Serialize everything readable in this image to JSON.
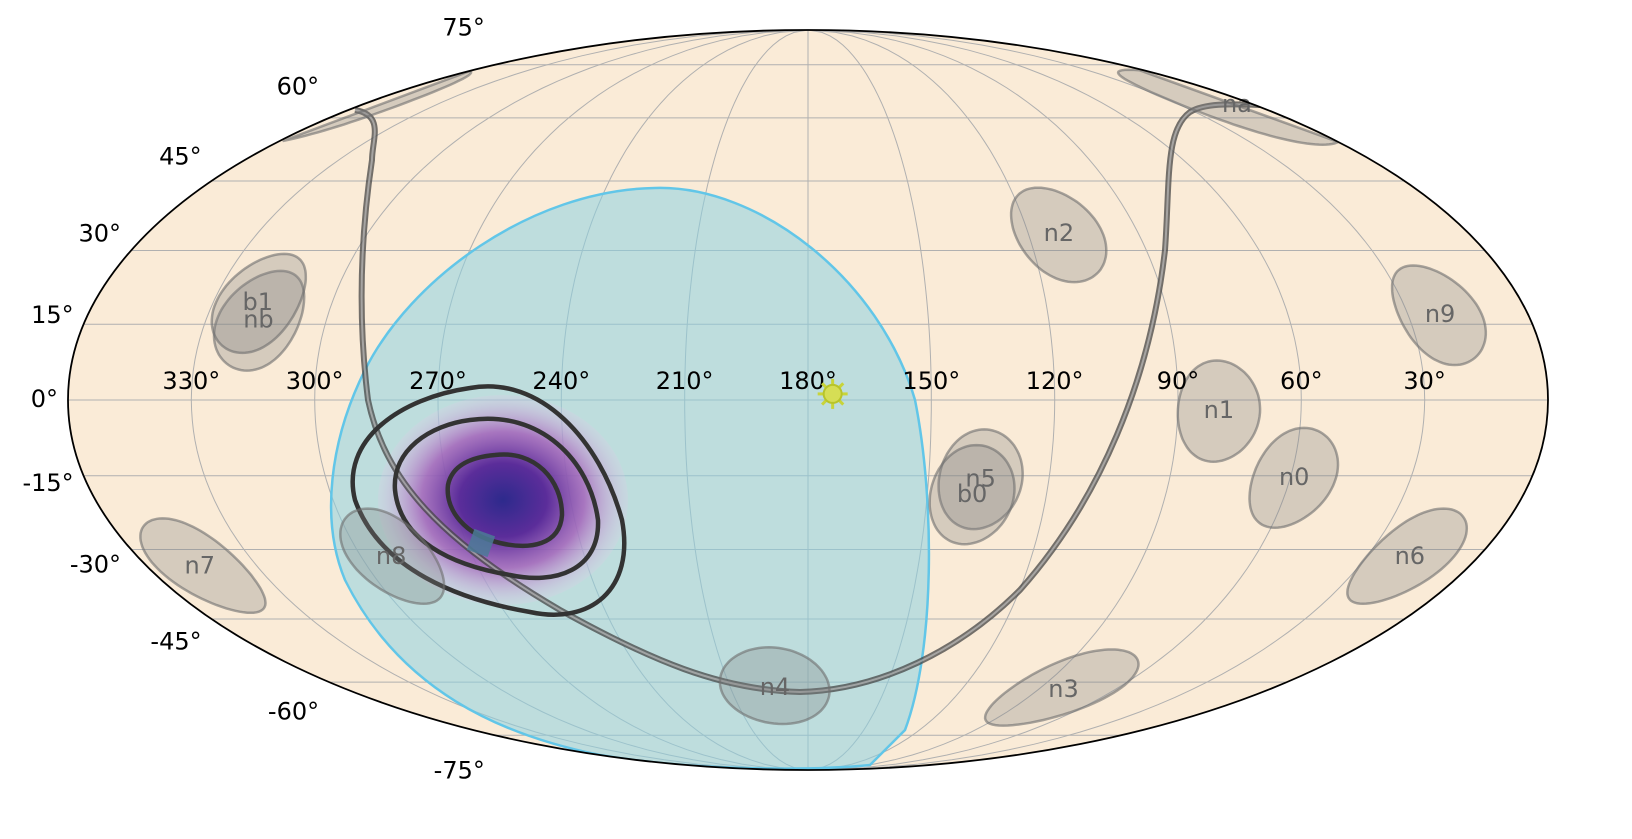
{
  "chart_data": {
    "type": "mollweide",
    "xlim": [
      360,
      0
    ],
    "ylim": [
      -90,
      90
    ],
    "xticks": [
      {
        "value": 330,
        "label": "330°"
      },
      {
        "value": 300,
        "label": "300°"
      },
      {
        "value": 270,
        "label": "270°"
      },
      {
        "value": 240,
        "label": "240°"
      },
      {
        "value": 210,
        "label": "210°"
      },
      {
        "value": 180,
        "label": "180°"
      },
      {
        "value": 150,
        "label": "150°"
      },
      {
        "value": 120,
        "label": "120°"
      },
      {
        "value": 90,
        "label": "90°"
      },
      {
        "value": 60,
        "label": "60°"
      },
      {
        "value": 30,
        "label": "30°"
      }
    ],
    "yticks": [
      {
        "value": -75,
        "label": "-75°"
      },
      {
        "value": -60,
        "label": "-60°"
      },
      {
        "value": -45,
        "label": "-45°"
      },
      {
        "value": -30,
        "label": "-30°"
      },
      {
        "value": -15,
        "label": "-15°"
      },
      {
        "value": 0,
        "label": "0°"
      },
      {
        "value": 15,
        "label": "15°"
      },
      {
        "value": 30,
        "label": "30°"
      },
      {
        "value": 45,
        "label": "45°"
      },
      {
        "value": 60,
        "label": "60°"
      },
      {
        "value": 75,
        "label": "75°"
      }
    ],
    "grid": true,
    "detectors": [
      {
        "name": "n0",
        "ra": 59,
        "dec": -15.5
      },
      {
        "name": "n1",
        "ra": 80,
        "dec": -2.2
      },
      {
        "name": "n2",
        "ra": 111.7,
        "dec": 33.5
      },
      {
        "name": "n3",
        "ra": 80,
        "dec": -62
      },
      {
        "name": "n4",
        "ra": 192.8,
        "dec": -61.5
      },
      {
        "name": "n5",
        "ra": 137,
        "dec": -15.8
      },
      {
        "name": "n6",
        "ra": 18.3,
        "dec": -31.6
      },
      {
        "name": "n7",
        "ra": 345.7,
        "dec": -33.6
      },
      {
        "name": "n8",
        "ra": 292,
        "dec": -31.6
      },
      {
        "name": "n9",
        "ra": 22,
        "dec": 16.9
      },
      {
        "name": "na",
        "ra": 7,
        "dec": 63.4
      },
      {
        "name": "nb",
        "ra": 316.9,
        "dec": 15.8
      },
      {
        "name": "b0",
        "ra": 138.7,
        "dec": -18.9
      },
      {
        "name": "b1",
        "ra": 318.7,
        "dec": 19.3
      }
    ],
    "sun": {
      "ra": 174,
      "dec": 1.2
    }
  }
}
